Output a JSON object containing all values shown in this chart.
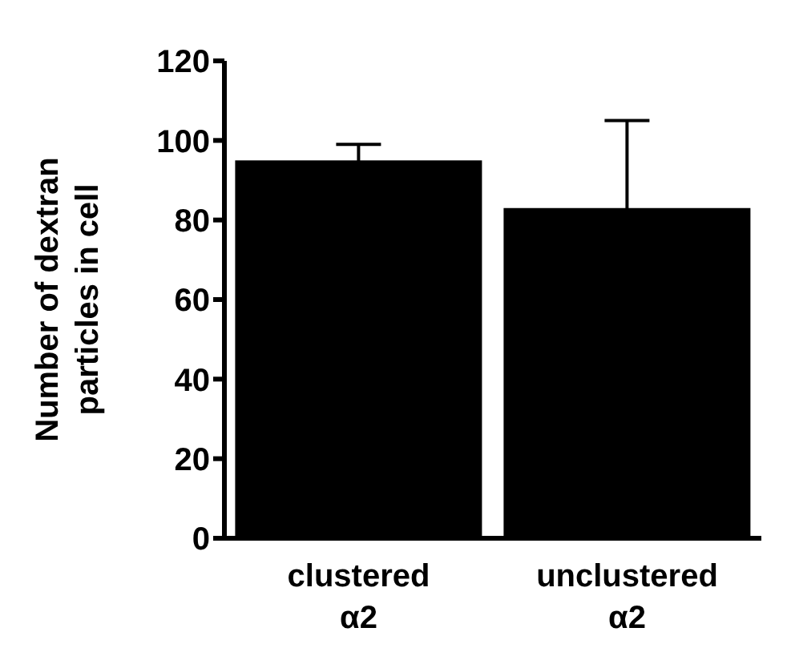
{
  "chart_data": {
    "type": "bar",
    "ylabel": "Number of dextran particles in cell",
    "categories": [
      "clustered α2",
      "unclustered α2"
    ],
    "values": [
      95,
      83
    ],
    "errors": [
      4,
      22
    ],
    "color": "#000000",
    "ylim": [
      0,
      120
    ],
    "yticks": [
      0,
      20,
      40,
      60,
      80,
      100,
      120
    ]
  }
}
